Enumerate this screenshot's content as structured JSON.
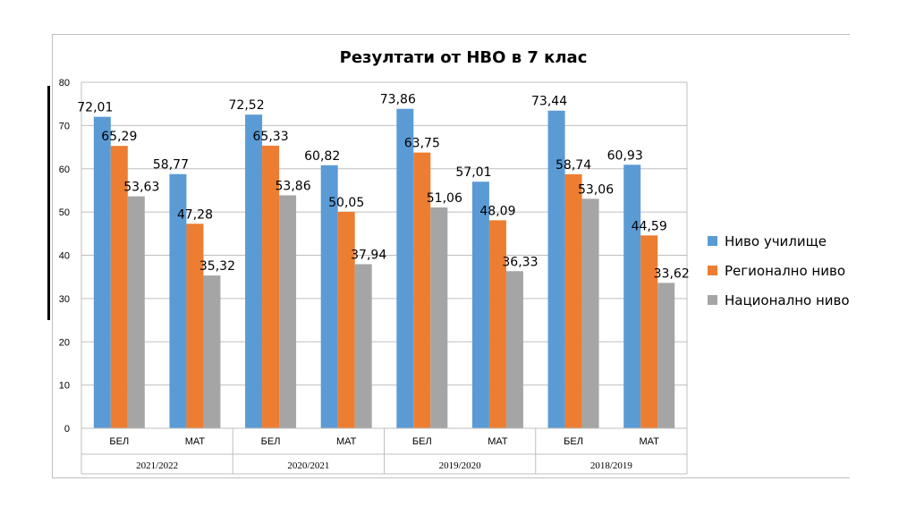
{
  "chart_data": {
    "type": "bar",
    "title": "Резултати от НВО в 7 клас",
    "xlabel": "",
    "ylabel": "",
    "ylim": [
      0,
      80
    ],
    "yticks": [
      0,
      10,
      20,
      30,
      40,
      50,
      60,
      70,
      80
    ],
    "grid": true,
    "legend_position": "right",
    "groups": [
      {
        "label": "2021/2022",
        "categories": [
          "БЕЛ",
          "МАТ"
        ]
      },
      {
        "label": "2020/2021",
        "categories": [
          "БЕЛ",
          "МАТ"
        ]
      },
      {
        "label": "2019/2020",
        "categories": [
          "БЕЛ",
          "МАТ"
        ]
      },
      {
        "label": "2018/2019",
        "categories": [
          "БЕЛ",
          "МАТ"
        ]
      }
    ],
    "categories": [
      "БЕЛ",
      "МАТ",
      "БЕЛ",
      "МАТ",
      "БЕЛ",
      "МАТ",
      "БЕЛ",
      "МАТ"
    ],
    "series": [
      {
        "name": "Ниво училище",
        "color": "#5b9bd5",
        "values": [
          72.01,
          58.77,
          72.52,
          60.82,
          73.86,
          57.01,
          73.44,
          60.93
        ],
        "labels": [
          "72,01",
          "58,77",
          "72,52",
          "60,82",
          "73,86",
          "57,01",
          "73,44",
          "60,93"
        ]
      },
      {
        "name": "Регионално ниво",
        "color": "#ed7d31",
        "values": [
          65.29,
          47.28,
          65.33,
          50.05,
          63.75,
          48.09,
          58.74,
          44.59
        ],
        "labels": [
          "65,29",
          "47,28",
          "65,33",
          "50,05",
          "63,75",
          "48,09",
          "58,74",
          "44,59"
        ]
      },
      {
        "name": "Национално ниво",
        "color": "#a5a5a5",
        "values": [
          53.63,
          35.32,
          53.86,
          37.94,
          51.06,
          36.33,
          53.06,
          33.62
        ],
        "labels": [
          "53,63",
          "35,32",
          "53,86",
          "37,94",
          "51,06",
          "36,33",
          "53,06",
          "33,62"
        ]
      }
    ]
  }
}
